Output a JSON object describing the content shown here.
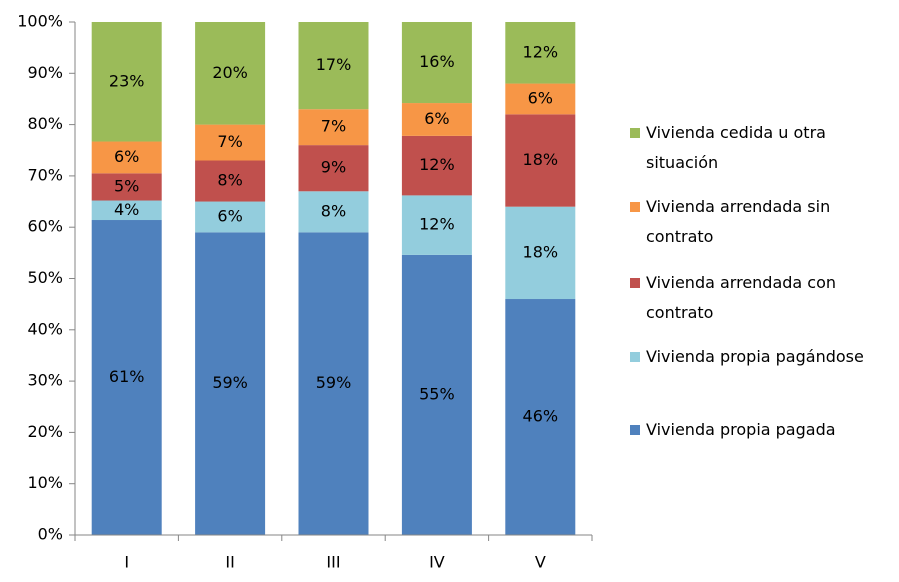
{
  "chart_data": {
    "type": "stacked-bar",
    "categories": [
      "I",
      "II",
      "III",
      "IV",
      "V"
    ],
    "series": [
      {
        "name": "Vivienda propia pagada",
        "color": "#4f81bd",
        "values": [
          61.4,
          59,
          59,
          54.6,
          46
        ],
        "value_labels": [
          "61%",
          "59%",
          "59%",
          "55%",
          "46%"
        ]
      },
      {
        "name": "Vivienda propia pagándose",
        "color": "#93cddd",
        "values": [
          3.8,
          6,
          8,
          11.6,
          18
        ],
        "value_labels": [
          "4%",
          "6%",
          "8%",
          "12%",
          "18%"
        ]
      },
      {
        "name": "Vivienda arrendada con contrato",
        "color": "#c0504d",
        "values": [
          5.3,
          8,
          9,
          11.6,
          18
        ],
        "value_labels": [
          "5%",
          "8%",
          "9%",
          "12%",
          "18%"
        ]
      },
      {
        "name": "Vivienda arrendada sin contrato",
        "color": "#f79646",
        "values": [
          6.2,
          7,
          7,
          6.4,
          6
        ],
        "value_labels": [
          "6%",
          "7%",
          "7%",
          "6%",
          "6%"
        ]
      },
      {
        "name": "Vivienda cedida u otra situación",
        "color": "#9bbb59",
        "values": [
          23.3,
          20,
          17,
          15.8,
          12
        ],
        "value_labels": [
          "23%",
          "20%",
          "17%",
          "16%",
          "12%"
        ]
      }
    ],
    "ylim": [
      0,
      100
    ],
    "yticks": [
      {
        "value": 0,
        "label": "0%"
      },
      {
        "value": 10,
        "label": "10%"
      },
      {
        "value": 20,
        "label": "20%"
      },
      {
        "value": 30,
        "label": "30%"
      },
      {
        "value": 40,
        "label": "40%"
      },
      {
        "value": 50,
        "label": "50%"
      },
      {
        "value": 60,
        "label": "60%"
      },
      {
        "value": 70,
        "label": "70%"
      },
      {
        "value": 80,
        "label": "80%"
      },
      {
        "value": 90,
        "label": "90%"
      },
      {
        "value": 100,
        "label": "100%"
      }
    ],
    "grid": false,
    "legend": "right"
  }
}
